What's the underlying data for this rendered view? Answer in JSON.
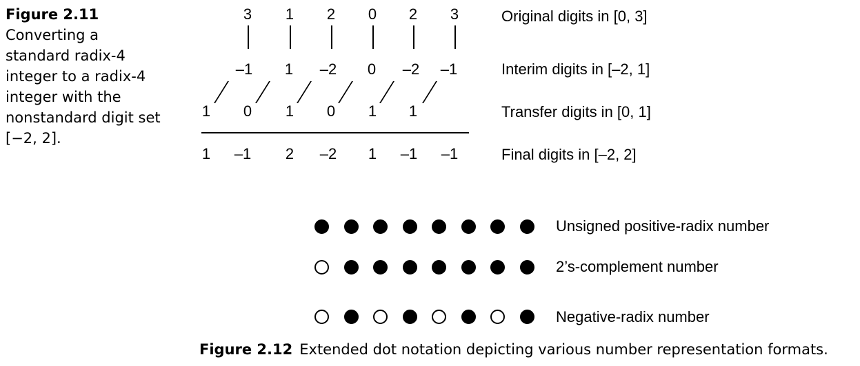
{
  "figure_2_11": {
    "label": "Figure 2.11",
    "caption_lines": [
      "Converting a",
      "standard radix-4",
      "integer to a radix-4",
      "integer with the",
      "nonstandard digit set",
      "[−2, 2]."
    ],
    "rows": {
      "original": {
        "digits": [
          "3",
          "1",
          "2",
          "0",
          "2",
          "3"
        ],
        "label": "Original digits in [0, 3]"
      },
      "interim": {
        "digits": [
          "–1",
          "1",
          "–2",
          "0",
          "–2",
          "–1"
        ],
        "label": "Interim digits in [–2, 1]"
      },
      "transfer": {
        "digits": [
          "1",
          "0",
          "1",
          "0",
          "1",
          "1"
        ],
        "label": "Transfer digits in [0, 1]"
      },
      "final": {
        "digits": [
          "1",
          "–1",
          "2",
          "–2",
          "1",
          "–1",
          "–1"
        ],
        "label": "Final digits in [–2, 2]"
      }
    }
  },
  "figure_2_12": {
    "label": "Figure 2.12",
    "caption": "Extended dot notation depicting various number representation formats.",
    "rows": [
      {
        "label": "Unsigned positive-radix number",
        "dots": [
          "black",
          "black",
          "black",
          "black",
          "black",
          "black",
          "black",
          "black"
        ]
      },
      {
        "label": "2’s-complement number",
        "dots": [
          "white",
          "black",
          "black",
          "black",
          "black",
          "black",
          "black",
          "black"
        ]
      },
      {
        "label": "Negative-radix number",
        "dots": [
          "white",
          "black",
          "white",
          "black",
          "white",
          "black",
          "white",
          "black"
        ]
      }
    ]
  }
}
